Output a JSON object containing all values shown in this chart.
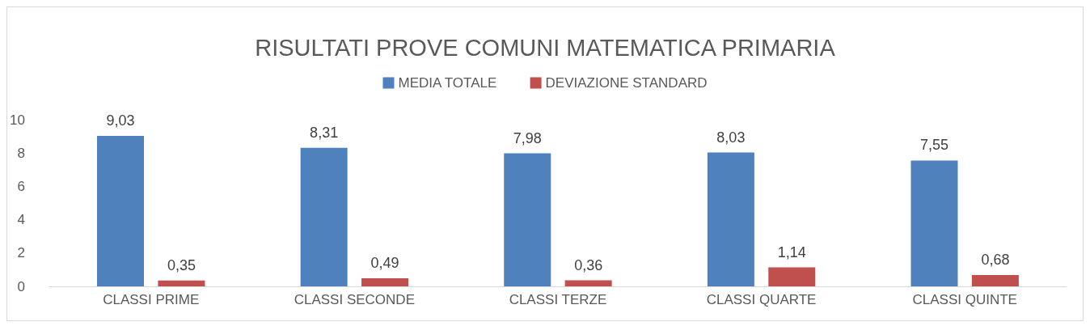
{
  "chart_data": {
    "type": "bar",
    "title": "RISULTATI PROVE COMUNI MATEMATICA PRIMARIA",
    "categories": [
      "CLASSI PRIME",
      "CLASSI SECONDE",
      "CLASSI TERZE",
      "CLASSI QUARTE",
      "CLASSI QUINTE"
    ],
    "series": [
      {
        "name": "MEDIA TOTALE",
        "color": "#4f81bd",
        "values": [
          9.03,
          8.31,
          7.98,
          8.03,
          7.55
        ],
        "value_labels": [
          "9,03",
          "8,31",
          "7,98",
          "8,03",
          "7,55"
        ]
      },
      {
        "name": "DEVIAZIONE STANDARD",
        "color": "#c0504d",
        "values": [
          0.35,
          0.49,
          0.36,
          1.14,
          0.68
        ],
        "value_labels": [
          "0,35",
          "0,49",
          "0,36",
          "1,14",
          "0,68"
        ]
      }
    ],
    "ylim": [
      0,
      10
    ],
    "yticks": [
      0,
      2,
      4,
      6,
      8,
      10
    ],
    "grid": false,
    "legend": "top"
  }
}
